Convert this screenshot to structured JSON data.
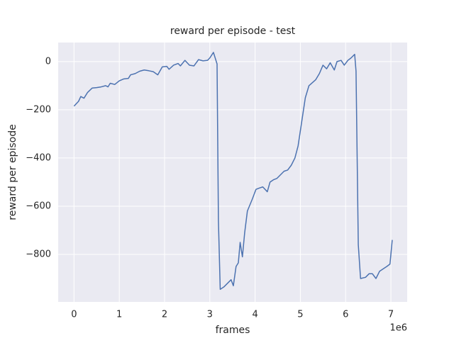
{
  "chart_data": {
    "type": "line",
    "title": "reward per episode - test",
    "x_label": "frames",
    "y_label": "reward per episode",
    "x_offset_label": "1e6",
    "xlim": [
      -350000,
      7360000
    ],
    "ylim": [
      -997,
      79
    ],
    "xticks": [
      {
        "value": 0,
        "label": "0"
      },
      {
        "value": 1000000,
        "label": "1"
      },
      {
        "value": 2000000,
        "label": "2"
      },
      {
        "value": 3000000,
        "label": "3"
      },
      {
        "value": 4000000,
        "label": "4"
      },
      {
        "value": 5000000,
        "label": "5"
      },
      {
        "value": 6000000,
        "label": "6"
      },
      {
        "value": 7000000,
        "label": "7"
      }
    ],
    "yticks": [
      {
        "value": -800,
        "label": "−800"
      },
      {
        "value": -600,
        "label": "−600"
      },
      {
        "value": -400,
        "label": "−400"
      },
      {
        "value": -200,
        "label": "−200"
      },
      0
    ],
    "grid": true,
    "background": "#eaeaf2",
    "x": [
      0,
      100000,
      150000,
      220000,
      300000,
      400000,
      500000,
      600000,
      700000,
      750000,
      800000,
      900000,
      1000000,
      1100000,
      1200000,
      1250000,
      1350000,
      1450000,
      1550000,
      1650000,
      1750000,
      1850000,
      1950000,
      2050000,
      2100000,
      2200000,
      2300000,
      2350000,
      2450000,
      2550000,
      2650000,
      2750000,
      2850000,
      2950000,
      3000000,
      3080000,
      3160000,
      3190000,
      3230000,
      3310000,
      3390000,
      3470000,
      3520000,
      3580000,
      3630000,
      3670000,
      3720000,
      3770000,
      3830000,
      3940000,
      4020000,
      4090000,
      4170000,
      4270000,
      4330000,
      4410000,
      4480000,
      4560000,
      4640000,
      4720000,
      4800000,
      4880000,
      4950000,
      5030000,
      5110000,
      5190000,
      5340000,
      5420000,
      5500000,
      5580000,
      5660000,
      5750000,
      5810000,
      5900000,
      5970000,
      6050000,
      6120000,
      6200000,
      6230000,
      6280000,
      6330000,
      6440000,
      6520000,
      6590000,
      6670000,
      6750000,
      6830000,
      6910000,
      6980000,
      7030000
    ],
    "series": [
      {
        "name": "reward",
        "color": "#4c72b0",
        "values": [
          -185,
          -165,
          -145,
          -152,
          -128,
          -110,
          -108,
          -105,
          -100,
          -105,
          -90,
          -95,
          -80,
          -72,
          -70,
          -55,
          -50,
          -40,
          -35,
          -38,
          -42,
          -55,
          -22,
          -20,
          -32,
          -15,
          -8,
          -18,
          5,
          -15,
          -18,
          8,
          3,
          5,
          15,
          38,
          -10,
          -660,
          -945,
          -935,
          -920,
          -905,
          -930,
          -850,
          -835,
          -750,
          -810,
          -710,
          -620,
          -570,
          -530,
          -525,
          -520,
          -540,
          -500,
          -490,
          -485,
          -470,
          -455,
          -450,
          -430,
          -400,
          -350,
          -250,
          -150,
          -100,
          -75,
          -50,
          -15,
          -30,
          -5,
          -35,
          0,
          5,
          -15,
          5,
          15,
          30,
          -40,
          -760,
          -900,
          -895,
          -880,
          -880,
          -900,
          -870,
          -860,
          -850,
          -840,
          -740
        ]
      }
    ]
  }
}
